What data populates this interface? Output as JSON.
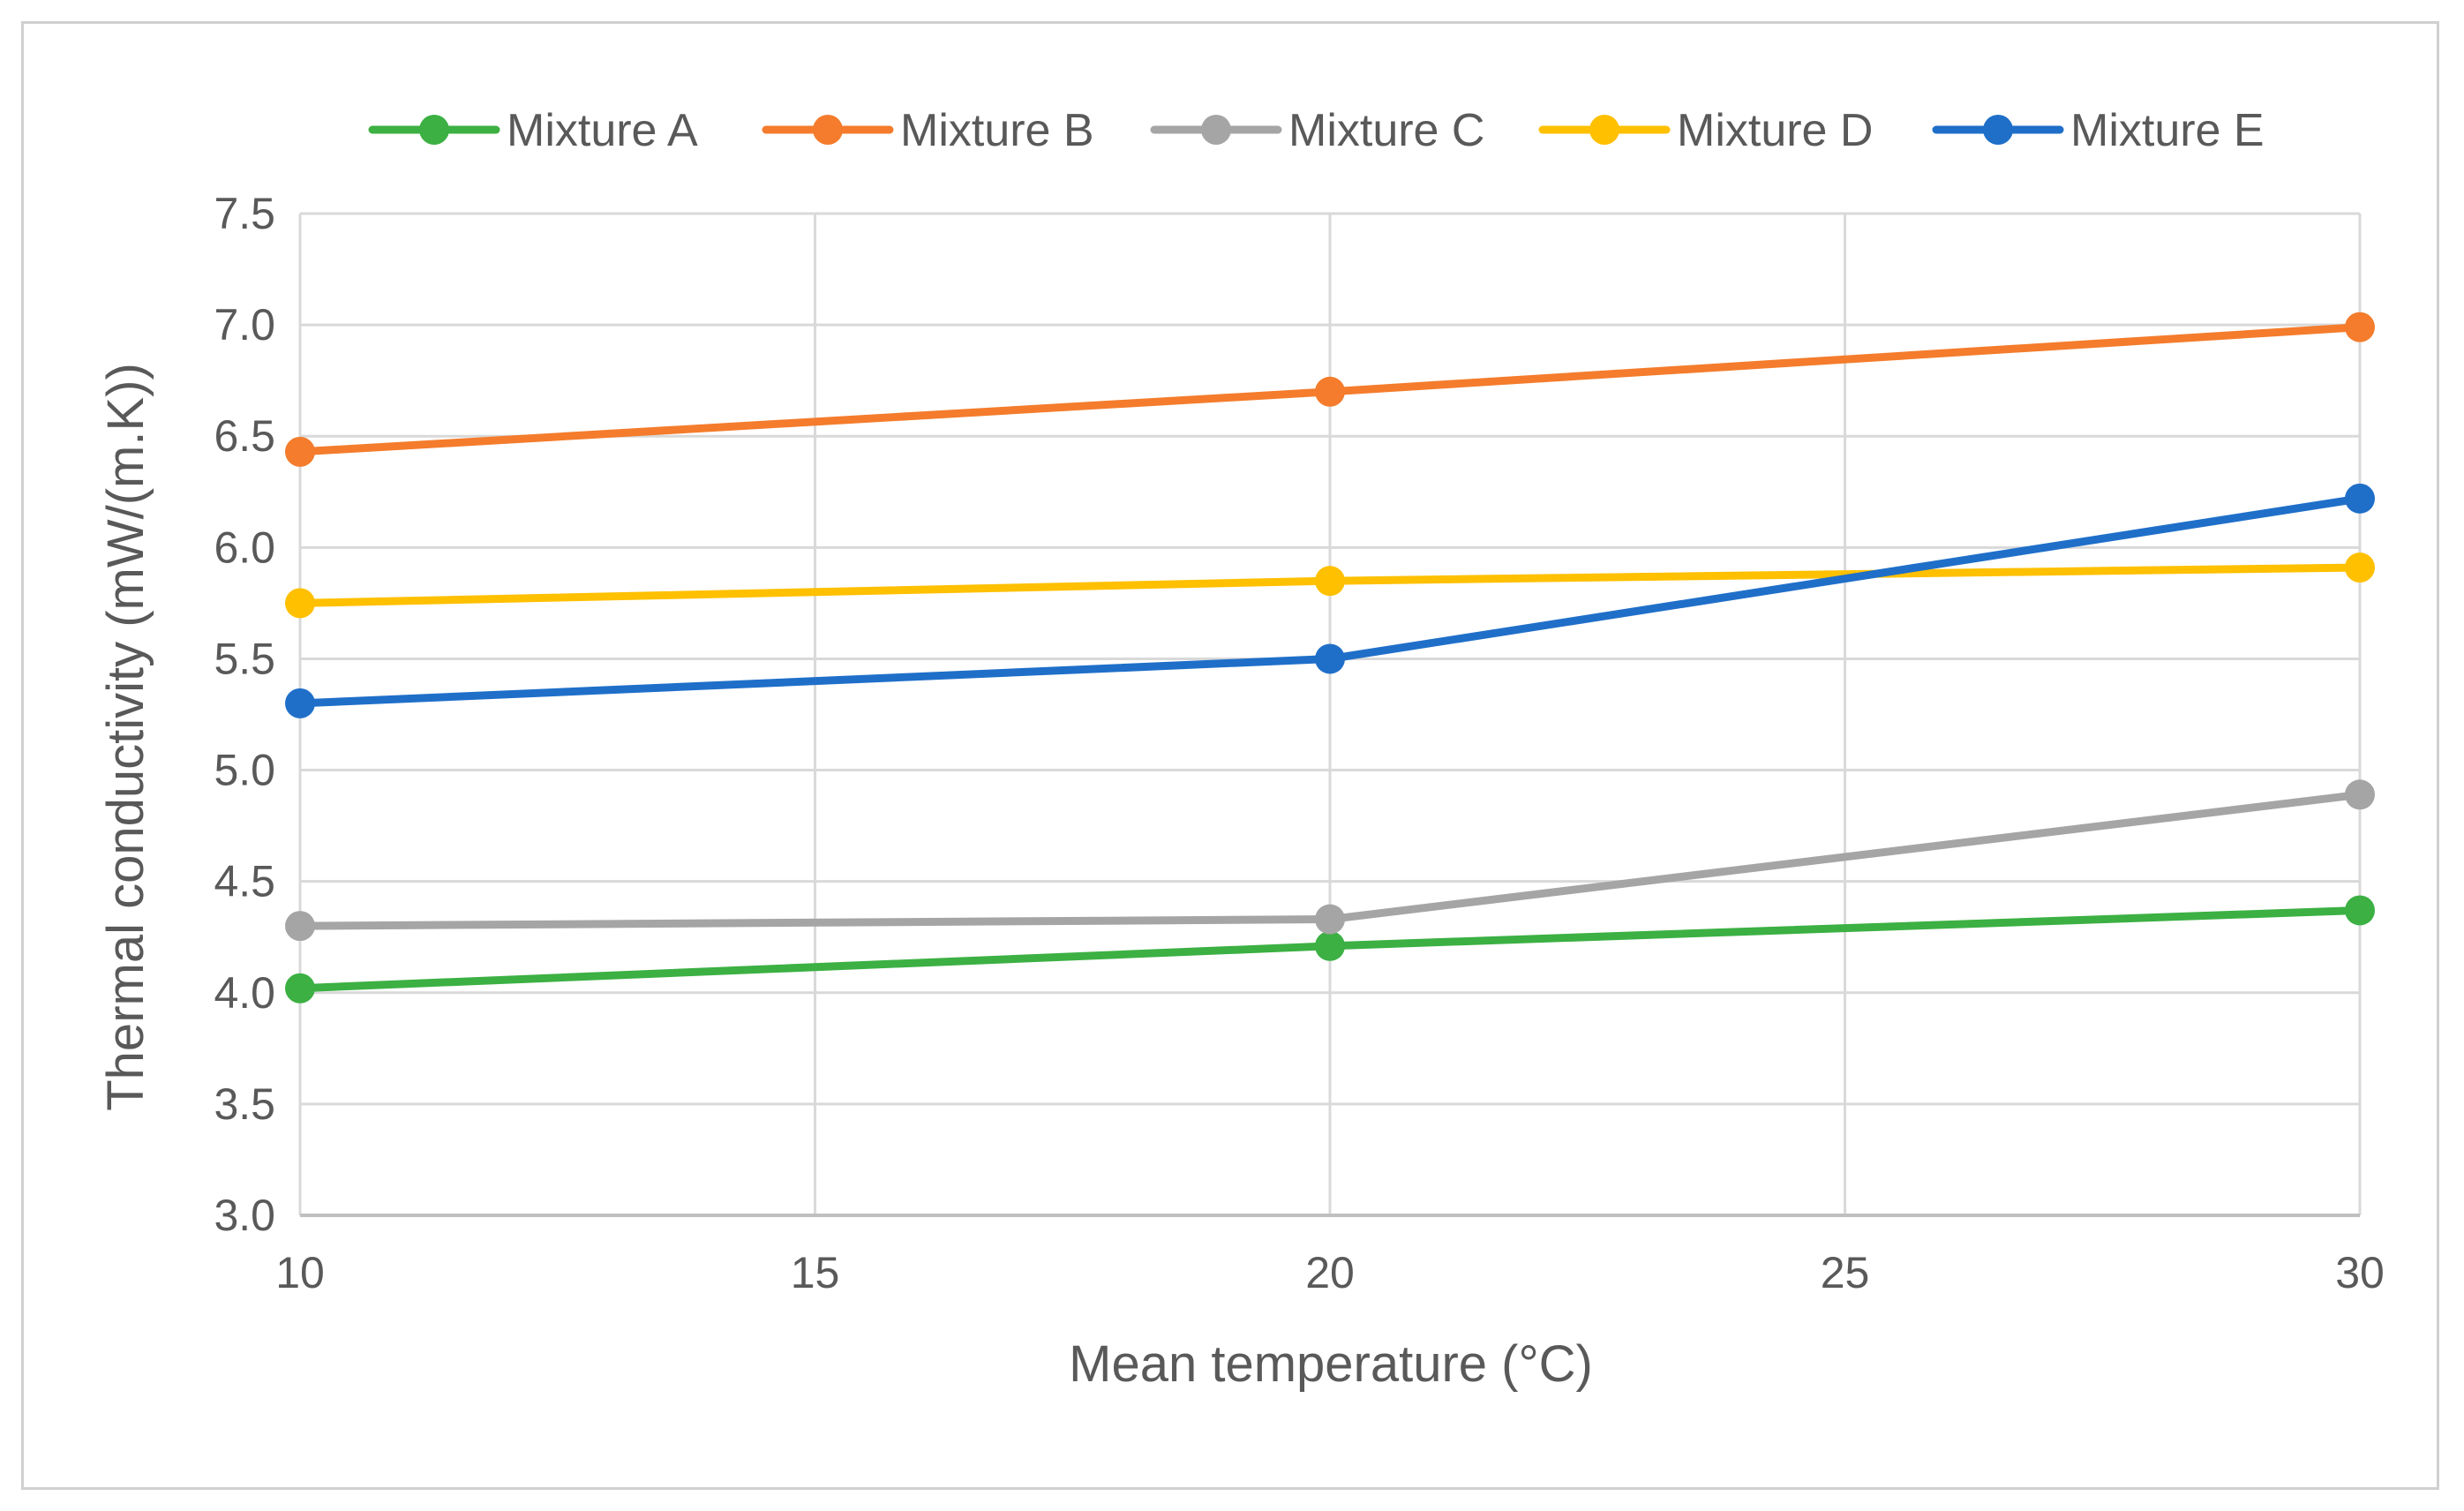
{
  "chart_data": {
    "type": "line",
    "title": "",
    "xlabel": "Mean temperature (°C)",
    "ylabel": "Thermal conductivity  (mW/(m.K))",
    "xlim": [
      10,
      30
    ],
    "ylim": [
      3.0,
      7.5
    ],
    "x_ticks": [
      10,
      15,
      20,
      25,
      30
    ],
    "x_tick_labels": [
      "10",
      "15",
      "20",
      "25",
      "30"
    ],
    "y_ticks": [
      3.0,
      3.5,
      4.0,
      4.5,
      5.0,
      5.5,
      6.0,
      6.5,
      7.0,
      7.5
    ],
    "y_tick_labels": [
      "3.0",
      "3.5",
      "4.0",
      "4.5",
      "5.0",
      "5.5",
      "6.0",
      "6.5",
      "7.0",
      "7.5"
    ],
    "grid": true,
    "legend_position": "top",
    "x": [
      10,
      20,
      30
    ],
    "series": [
      {
        "name": "Mixture A",
        "color": "#3cb043",
        "values": [
          4.02,
          4.21,
          4.37
        ]
      },
      {
        "name": "Mixture B",
        "color": "#f47c2c",
        "values": [
          6.43,
          6.7,
          6.99
        ]
      },
      {
        "name": "Mixture C",
        "color": "#a5a5a5",
        "values": [
          4.3,
          4.33,
          4.89
        ]
      },
      {
        "name": "Mixture D",
        "color": "#ffc000",
        "values": [
          5.75,
          5.85,
          5.91
        ]
      },
      {
        "name": "Mixture E",
        "color": "#1f6fc9",
        "values": [
          5.3,
          5.5,
          6.22
        ]
      }
    ],
    "colors": {
      "grid": "#d9d9d9",
      "axis": "#bfbfbf",
      "text": "#595959"
    }
  }
}
